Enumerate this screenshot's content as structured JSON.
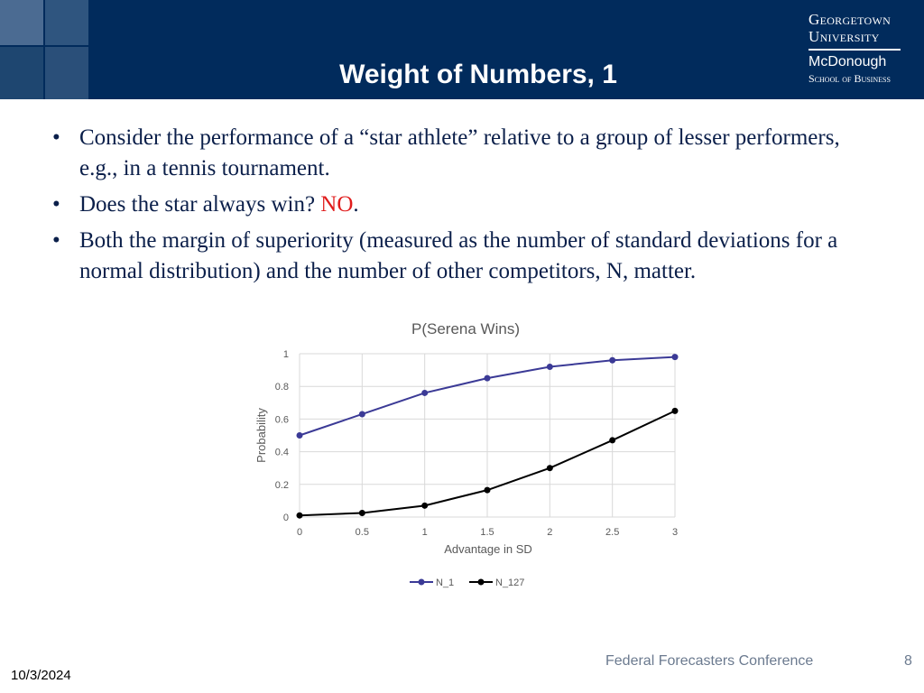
{
  "slide": {
    "title": "Weight of Numbers, 1",
    "logo": {
      "line1": "Georgetown",
      "line2": "University",
      "line3": "McDonough",
      "line4": "School of Business"
    },
    "bullets": [
      {
        "text": "Consider the performance of a “star athlete” relative to a group of lesser performers, e.g., in a tennis tournament."
      },
      {
        "text_before": "Does the star always win? ",
        "highlight": "NO",
        "text_after": "."
      },
      {
        "text": "Both the margin of superiority (measured as the number of standard deviations for a normal distribution) and the number of other competitors, N, matter."
      }
    ],
    "bullet_symbol": "•",
    "footer": {
      "conference": "Federal Forecasters Conference",
      "page_number": "8",
      "date": "10/3/2024"
    },
    "colors": {
      "header_bg": "#012b5c",
      "highlight": "#e01b1b",
      "body_text": "#0b1f4a"
    }
  },
  "chart_data": {
    "type": "line",
    "title": "P(Serena Wins)",
    "xlabel": "Advantage in SD",
    "ylabel": "Probability",
    "x": [
      0,
      0.5,
      1,
      1.5,
      2,
      2.5,
      3
    ],
    "xticks": [
      "0",
      "0.5",
      "1",
      "1.5",
      "2",
      "2.5",
      "3"
    ],
    "yticks": [
      "0",
      "0.2",
      "0.4",
      "0.6",
      "0.8",
      "1"
    ],
    "ylim": [
      0,
      1
    ],
    "grid": true,
    "legend_position": "bottom",
    "series": [
      {
        "name": "N_1",
        "color": "#3b3a96",
        "values": [
          0.5,
          0.63,
          0.76,
          0.85,
          0.92,
          0.96,
          0.98
        ]
      },
      {
        "name": "N_127",
        "color": "#000000",
        "values": [
          0.01,
          0.025,
          0.07,
          0.165,
          0.3,
          0.47,
          0.65
        ]
      }
    ]
  }
}
